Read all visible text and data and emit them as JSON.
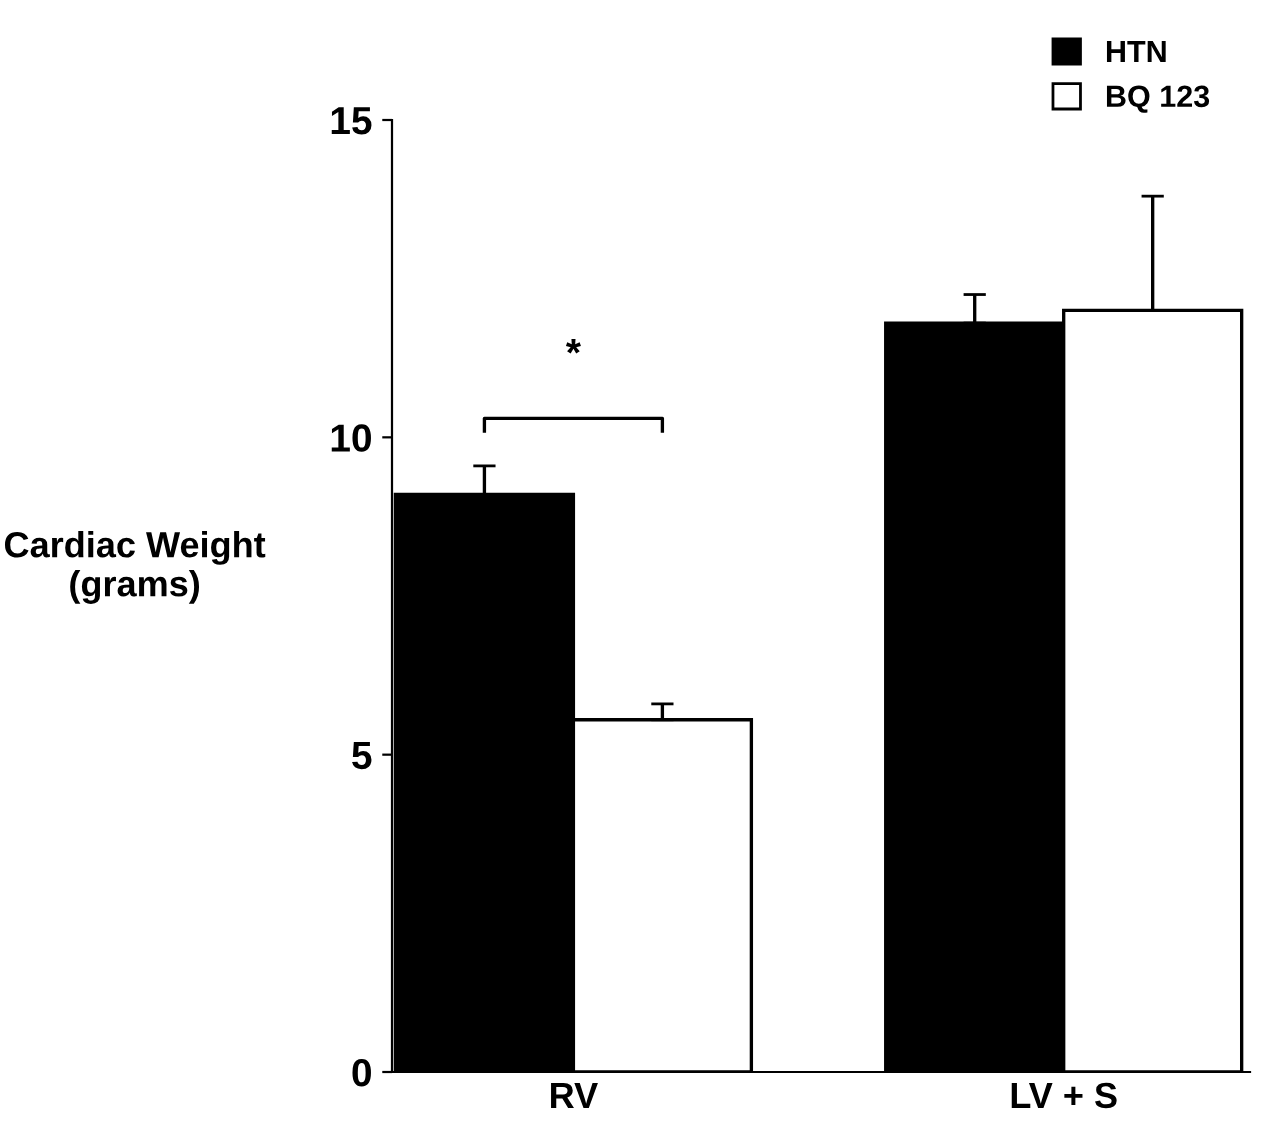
{
  "chart_data": {
    "type": "bar",
    "ylabel": "Cardiac Weight\n(grams)",
    "categories": [
      "RV",
      "LV + S"
    ],
    "series": [
      {
        "name": "HTN",
        "color": "#000000",
        "values": [
          9.1,
          11.8
        ],
        "errors": [
          [
            9.1,
            9.55
          ],
          [
            11.8,
            12.25
          ]
        ]
      },
      {
        "name": "BQ 123",
        "color": "#ffffff",
        "values": [
          5.55,
          12.0
        ],
        "errors": [
          [
            5.55,
            5.8
          ],
          [
            12.0,
            13.8
          ]
        ]
      }
    ],
    "ylim": [
      0,
      15
    ],
    "yticks": [
      0,
      5,
      10,
      15
    ],
    "grid": false,
    "legend": "top right",
    "annotations": [
      "*"
    ]
  }
}
